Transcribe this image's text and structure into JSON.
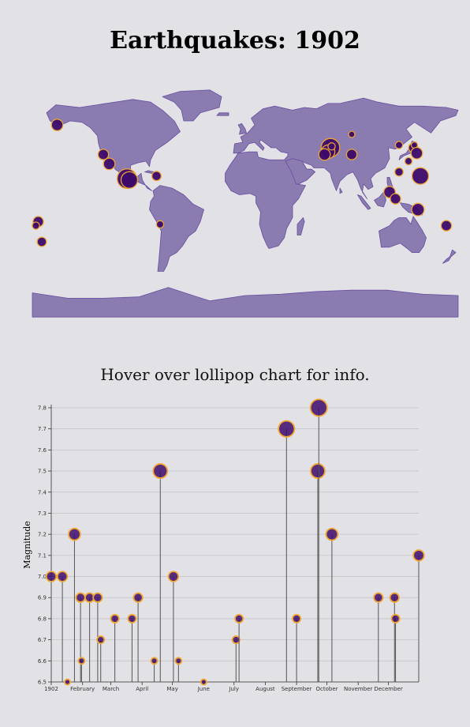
{
  "page": {
    "title": "Earthquakes: 1902",
    "hint": "Hover over lollipop chart for info."
  },
  "colors": {
    "background": "#e1e1e6",
    "land": "#8a7bb0",
    "land_stroke": "#6a4fa0",
    "point_fill": "#3d0a6b",
    "point_stroke": "#f0a830",
    "stem": "#555555",
    "grid": "#c4c4c9"
  },
  "chart_data": {
    "type": "lollipop",
    "title": "",
    "xlabel": "",
    "ylabel": "Magnitude",
    "ylim": [
      6.5,
      7.8
    ],
    "yticks": [
      "6.5",
      "6.6",
      "6.7",
      "6.8",
      "6.9",
      "7.0",
      "7.1",
      "7.2",
      "7.3",
      "7.4",
      "7.5",
      "7.6",
      "7.7",
      "7.8"
    ],
    "xticks": [
      {
        "label": "1902",
        "date": "1902-01-01"
      },
      {
        "label": "February",
        "date": "1902-02-01"
      },
      {
        "label": "March",
        "date": "1902-03-01"
      },
      {
        "label": "April",
        "date": "1902-04-01"
      },
      {
        "label": "May",
        "date": "1902-05-01"
      },
      {
        "label": "June",
        "date": "1902-06-01"
      },
      {
        "label": "July",
        "date": "1902-07-01"
      },
      {
        "label": "August",
        "date": "1902-08-01"
      },
      {
        "label": "September",
        "date": "1902-09-01"
      },
      {
        "label": "October",
        "date": "1902-10-01"
      },
      {
        "label": "November",
        "date": "1902-11-01"
      },
      {
        "label": "December",
        "date": "1902-12-01"
      }
    ],
    "xlim": [
      "1902-01-01",
      "1902-12-31"
    ],
    "points": [
      {
        "date": "1902-01-01",
        "magnitude": 7.0
      },
      {
        "date": "1902-01-12",
        "magnitude": 7.0
      },
      {
        "date": "1902-01-17",
        "magnitude": 6.5
      },
      {
        "date": "1902-01-24",
        "magnitude": 7.2
      },
      {
        "date": "1902-01-30",
        "magnitude": 6.9
      },
      {
        "date": "1902-01-31",
        "magnitude": 6.6
      },
      {
        "date": "1902-02-08",
        "magnitude": 6.9
      },
      {
        "date": "1902-02-16",
        "magnitude": 6.9
      },
      {
        "date": "1902-02-19",
        "magnitude": 6.7
      },
      {
        "date": "1902-03-05",
        "magnitude": 6.8
      },
      {
        "date": "1902-03-22",
        "magnitude": 6.8
      },
      {
        "date": "1902-03-28",
        "magnitude": 6.9
      },
      {
        "date": "1902-04-13",
        "magnitude": 6.6
      },
      {
        "date": "1902-04-19",
        "magnitude": 7.5
      },
      {
        "date": "1902-05-02",
        "magnitude": 7.0
      },
      {
        "date": "1902-05-07",
        "magnitude": 6.6
      },
      {
        "date": "1902-06-01",
        "magnitude": 6.5
      },
      {
        "date": "1902-07-03",
        "magnitude": 6.7
      },
      {
        "date": "1902-07-06",
        "magnitude": 6.8
      },
      {
        "date": "1902-08-22",
        "magnitude": 7.7
      },
      {
        "date": "1902-09-01",
        "magnitude": 6.8
      },
      {
        "date": "1902-09-22",
        "magnitude": 7.5
      },
      {
        "date": "1902-09-23",
        "magnitude": 7.8
      },
      {
        "date": "1902-10-06",
        "magnitude": 7.2
      },
      {
        "date": "1902-11-21",
        "magnitude": 6.9
      },
      {
        "date": "1902-12-07",
        "magnitude": 6.9
      },
      {
        "date": "1902-12-08",
        "magnitude": 6.8
      },
      {
        "date": "1902-12-31",
        "magnitude": 7.1
      }
    ]
  },
  "map_data": {
    "quakes": [
      {
        "lon": -159,
        "lat": 57,
        "magnitude": 7.0
      },
      {
        "lon": -120,
        "lat": 35,
        "magnitude": 6.9
      },
      {
        "lon": -115,
        "lat": 28,
        "magnitude": 7.0
      },
      {
        "lon": -100,
        "lat": 17,
        "magnitude": 7.8
      },
      {
        "lon": -98,
        "lat": 16,
        "magnitude": 7.5
      },
      {
        "lon": -75,
        "lat": 19,
        "magnitude": 6.8
      },
      {
        "lon": -72,
        "lat": -17,
        "magnitude": 6.6
      },
      {
        "lon": 72,
        "lat": 40,
        "magnitude": 7.7
      },
      {
        "lon": 70,
        "lat": 37,
        "magnitude": 7.2
      },
      {
        "lon": 67,
        "lat": 35,
        "magnitude": 7.0
      },
      {
        "lon": 73,
        "lat": 41,
        "magnitude": 6.6
      },
      {
        "lon": 90,
        "lat": 50,
        "magnitude": 6.5
      },
      {
        "lon": 90,
        "lat": 35,
        "magnitude": 6.9
      },
      {
        "lon": 130,
        "lat": 42,
        "magnitude": 6.6
      },
      {
        "lon": 142,
        "lat": 40,
        "magnitude": 6.8
      },
      {
        "lon": 143,
        "lat": 42,
        "magnitude": 6.5
      },
      {
        "lon": 145,
        "lat": 36,
        "magnitude": 7.0
      },
      {
        "lon": 138,
        "lat": 30,
        "magnitude": 6.6
      },
      {
        "lon": 130,
        "lat": 22,
        "magnitude": 6.7
      },
      {
        "lon": 148,
        "lat": 19,
        "magnitude": 7.5
      },
      {
        "lon": 122,
        "lat": 7,
        "magnitude": 7.0
      },
      {
        "lon": 127,
        "lat": 2,
        "magnitude": 6.9
      },
      {
        "lon": 146,
        "lat": -6,
        "magnitude": 7.1
      },
      {
        "lon": 170,
        "lat": -18,
        "magnitude": 6.9
      },
      {
        "lon": -175,
        "lat": -15,
        "magnitude": 6.9
      },
      {
        "lon": -177,
        "lat": -18,
        "magnitude": 6.6
      },
      {
        "lon": -172,
        "lat": -30,
        "magnitude": 6.8
      }
    ]
  }
}
